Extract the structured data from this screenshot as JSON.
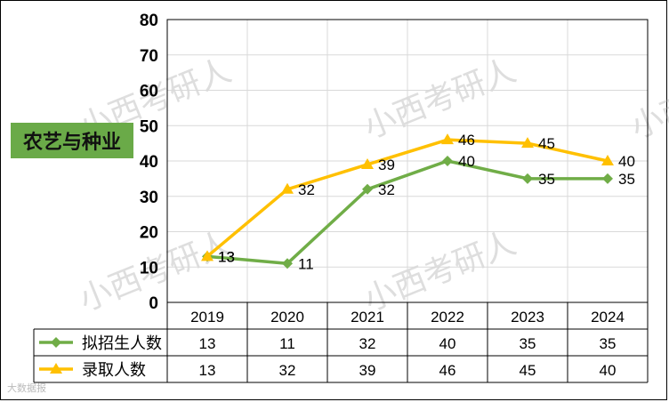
{
  "subject": "农艺与种业",
  "watermarks": [
    "小西考研人",
    "小西考研人",
    "小西考研人",
    "小西考研人",
    "小西考研人"
  ],
  "footer_brand": "大数据报",
  "chart_data": {
    "type": "line",
    "title": "",
    "xlabel": "",
    "ylabel": "",
    "categories": [
      "2019",
      "2020",
      "2021",
      "2022",
      "2023",
      "2024"
    ],
    "ylim": [
      0,
      80
    ],
    "yticks": [
      0,
      10,
      20,
      30,
      40,
      50,
      60,
      70,
      80
    ],
    "grid": true,
    "legend": "data-table-below",
    "series": [
      {
        "name": "拟招生人数",
        "values": [
          13,
          11,
          32,
          40,
          35,
          35
        ],
        "color": "#70ad47",
        "marker": "diamond"
      },
      {
        "name": "录取人数",
        "values": [
          13,
          32,
          39,
          46,
          45,
          40
        ],
        "color": "#ffc000",
        "marker": "triangle"
      }
    ]
  }
}
